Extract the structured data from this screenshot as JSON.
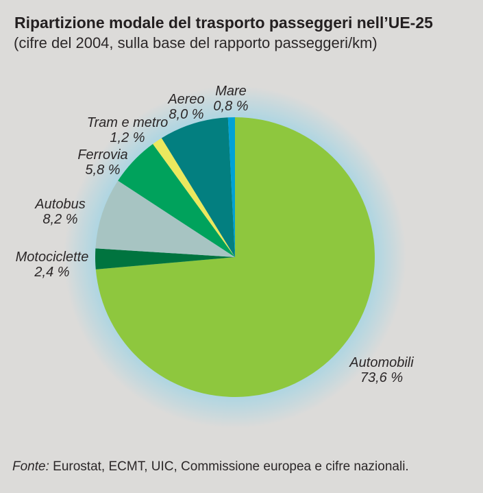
{
  "header": {
    "title": "Ripartizione modale del trasporto passeggeri nell’UE-25",
    "subtitle": "(cifre del 2004, sulla base del rapporto passeggeri/km)"
  },
  "chart_data": {
    "type": "pie",
    "title": "Ripartizione modale del trasporto passeggeri nell’UE-25",
    "subtitle": "(cifre del 2004, sulla base del rapporto passeggeri/km)",
    "unit": "%",
    "start_angle_deg": 0,
    "direction": "clockwise",
    "legend_position": "around-slices",
    "slices": [
      {
        "label": "Automobili",
        "value": 73.6,
        "display": "73,6 %",
        "color": "#8ec73e"
      },
      {
        "label": "Motociclette",
        "value": 2.4,
        "display": "2,4 %",
        "color": "#00743f"
      },
      {
        "label": "Autobus",
        "value": 8.2,
        "display": "8,2 %",
        "color": "#a7c4c2"
      },
      {
        "label": "Ferrovia",
        "value": 5.8,
        "display": "5,8 %",
        "color": "#00a25c"
      },
      {
        "label": "Tram e metro",
        "value": 1.2,
        "display": "1,2 %",
        "color": "#ebe85e"
      },
      {
        "label": "Aereo",
        "value": 8.0,
        "display": "8,0 %",
        "color": "#037f80"
      },
      {
        "label": "Mare",
        "value": 0.8,
        "display": "0,8 %",
        "color": "#00a2d6"
      }
    ],
    "glow_color": "#a8d5e3"
  },
  "footer": {
    "source_prefix": "Fonte:",
    "source_text": " Eurostat, ECMT, UIC, Commissione europea e cifre nazionali."
  },
  "colors": {
    "background": "#dcdbd9",
    "text": "#2b2728"
  }
}
